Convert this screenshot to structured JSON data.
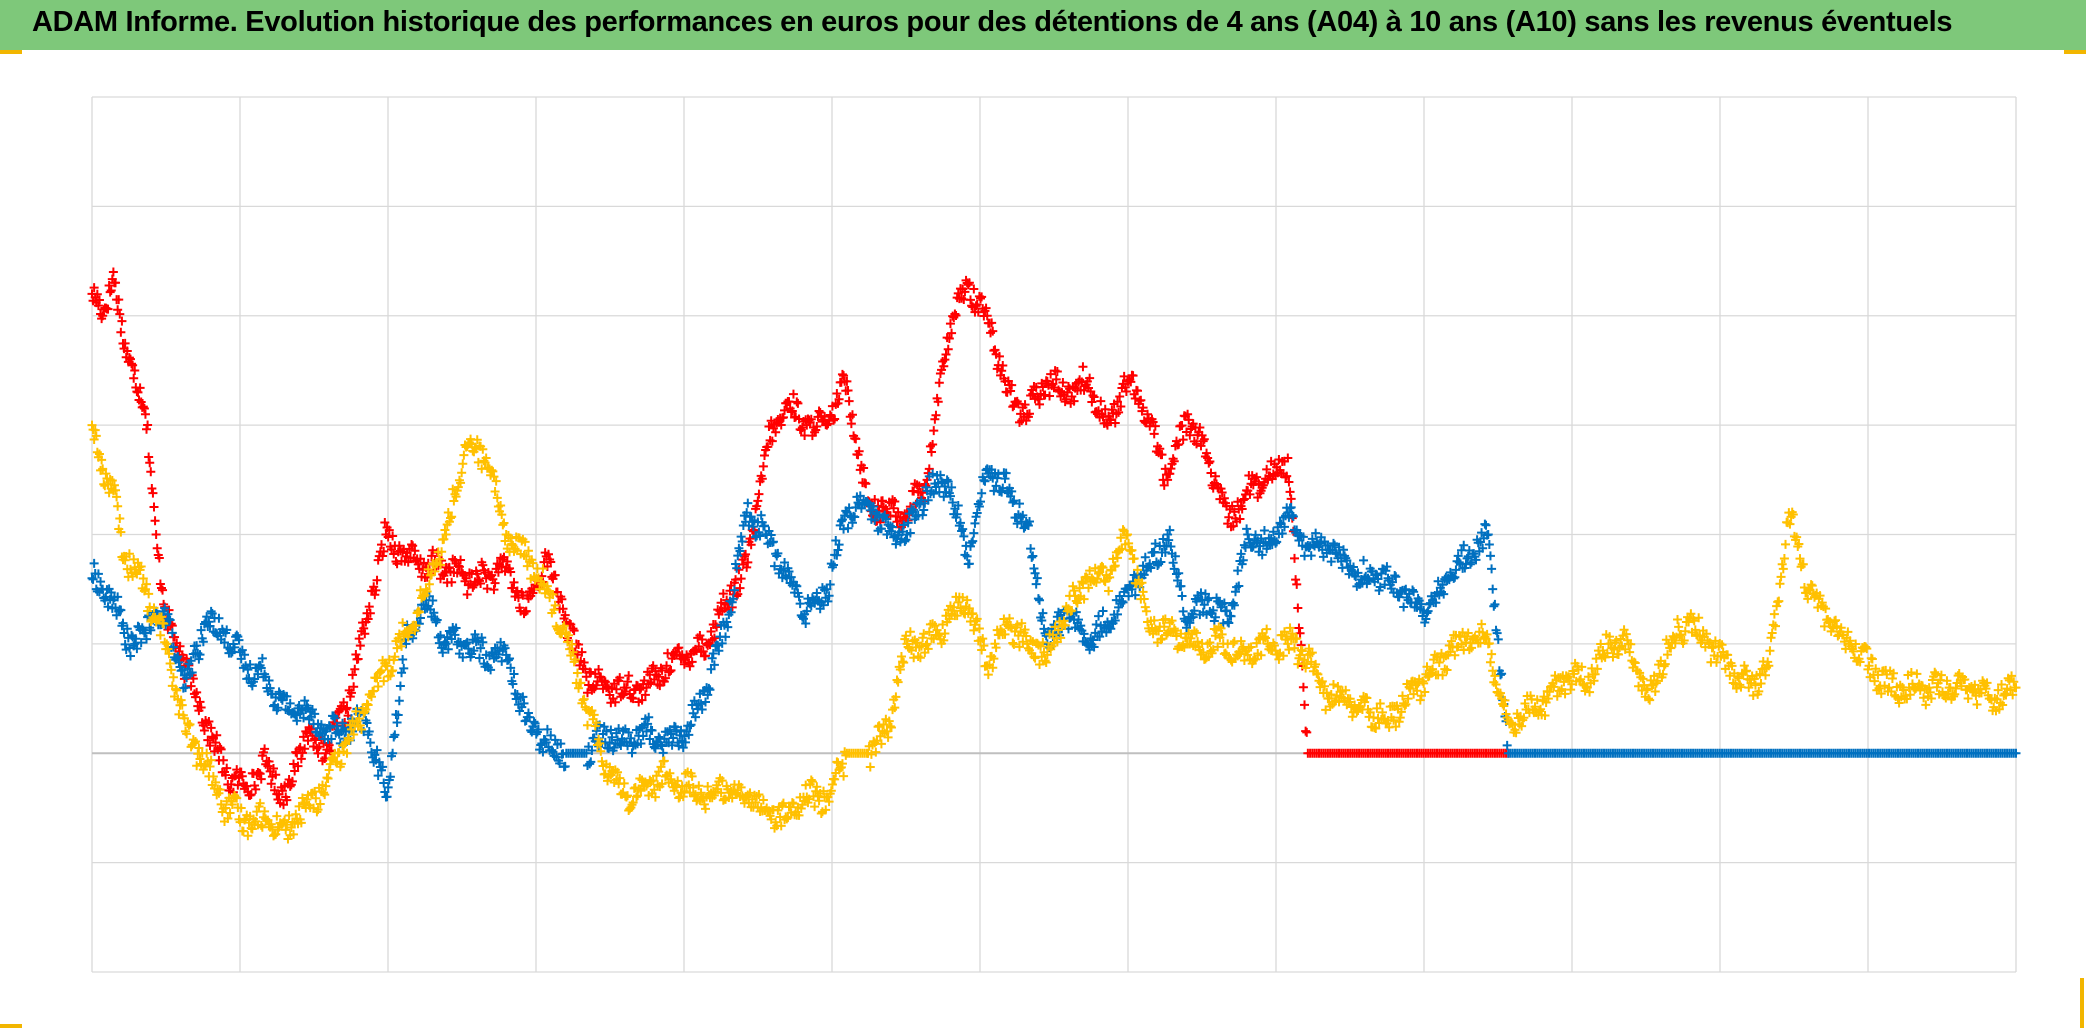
{
  "header": {
    "title": "ADAM Informe. Evolution historique des performances en euros pour des détentions de 4 ans (A04) à 10 ans (A10) sans les revenus éventuels"
  },
  "colors": {
    "title_bar": "#7ec87a",
    "corner_marks": "#f2b600",
    "grid": "#d9d9d9",
    "zero_line": "#bfbfbf"
  },
  "chart_data": {
    "type": "scatter",
    "marker": "plus",
    "grid": true,
    "x_gridlines": 13,
    "y_gridlines": 8,
    "tick_labels_shown": false,
    "legend": "none",
    "xlim": [
      0,
      1440
    ],
    "ylim": [
      -2,
      6
    ],
    "series": [
      {
        "color": "#ff0000",
        "x": [
          0,
          8,
          16,
          24,
          32,
          40,
          48,
          56,
          70,
          85,
          100,
          115,
          130,
          145,
          160,
          175,
          190,
          205,
          220,
          235,
          250,
          265,
          280,
          295,
          310,
          325,
          340,
          355,
          370,
          385,
          400,
          415,
          430,
          445,
          460,
          475,
          490,
          505,
          520,
          535,
          550,
          565,
          580,
          595,
          610,
          625,
          640,
          655,
          670,
          685,
          700,
          715,
          730,
          745,
          760,
          775,
          790,
          805,
          820,
          835,
          850,
          865,
          880,
          895,
          910,
          925,
          940,
          955,
          970,
          985,
          1000,
          1015,
          1030,
          1045,
          1060
        ],
        "y": [
          4.2,
          4.0,
          4.4,
          3.7,
          3.5,
          3.1,
          2.0,
          1.2,
          0.8,
          0.3,
          -0.2,
          -0.3,
          -0.1,
          -0.4,
          0.2,
          0.0,
          0.4,
          1.2,
          2.0,
          1.8,
          1.7,
          1.7,
          1.6,
          1.6,
          1.7,
          1.3,
          1.8,
          1.2,
          0.7,
          0.6,
          0.6,
          0.6,
          0.8,
          0.9,
          1.0,
          1.4,
          1.7,
          2.8,
          3.2,
          3.0,
          3.0,
          3.4,
          2.3,
          2.2,
          2.2,
          2.5,
          3.8,
          4.3,
          4.0,
          3.3,
          3.1,
          3.4,
          3.3,
          3.4,
          3.0,
          3.4,
          3.1,
          2.5,
          3.1,
          2.7,
          2.1,
          2.4,
          2.5,
          2.7,
          0.0,
          0.0,
          0.0,
          0.0,
          0.0,
          0.0,
          0.0,
          0.0,
          0.0,
          0.0,
          0.0
        ]
      },
      {
        "color": "#0070c0",
        "x": [
          0,
          8,
          16,
          24,
          32,
          40,
          48,
          56,
          70,
          85,
          100,
          115,
          130,
          145,
          160,
          175,
          190,
          205,
          220,
          235,
          250,
          265,
          280,
          295,
          310,
          325,
          340,
          355,
          370,
          385,
          400,
          415,
          430,
          445,
          460,
          475,
          490,
          505,
          520,
          535,
          550,
          565,
          580,
          595,
          610,
          625,
          640,
          655,
          670,
          685,
          700,
          715,
          730,
          745,
          760,
          775,
          790,
          805,
          820,
          835,
          850,
          865,
          880,
          895,
          910,
          925,
          940,
          955,
          970,
          985,
          1000,
          1015,
          1030,
          1045,
          1060,
          1075,
          1090,
          1105,
          1120,
          1135,
          1150,
          1165,
          1180,
          1195,
          1210,
          1225,
          1240,
          1255,
          1270,
          1285,
          1300,
          1315,
          1330,
          1345,
          1360,
          1375,
          1390,
          1405,
          1420,
          1440
        ],
        "y": [
          1.6,
          1.5,
          1.4,
          1.1,
          1.0,
          1.1,
          1.3,
          1.2,
          0.6,
          1.2,
          1.1,
          0.8,
          0.7,
          0.4,
          0.4,
          0.2,
          0.2,
          0.3,
          -0.4,
          1.0,
          1.4,
          1.0,
          1.0,
          0.9,
          0.9,
          0.3,
          0.1,
          0.0,
          0.0,
          0.2,
          0.1,
          0.2,
          0.1,
          0.2,
          0.6,
          1.2,
          2.2,
          2.0,
          1.6,
          1.3,
          1.5,
          2.2,
          2.3,
          2.0,
          2.0,
          2.4,
          2.5,
          1.8,
          2.6,
          2.4,
          2.1,
          1.0,
          1.3,
          1.0,
          1.2,
          1.5,
          1.7,
          2.0,
          1.2,
          1.4,
          1.2,
          2.0,
          1.9,
          2.2,
          1.9,
          1.9,
          1.7,
          1.6,
          1.6,
          1.4,
          1.3,
          1.6,
          1.8,
          2.0,
          0.0,
          0.0,
          0.0,
          0.0,
          0.0,
          0.0,
          0.0,
          0.0,
          0.0,
          0.0,
          0.0,
          0.0,
          0.0,
          0.0,
          0.0,
          0.0,
          0.0,
          0.0,
          0.0,
          0.0,
          0.0,
          0.0,
          0.0,
          0.0,
          0.0,
          0.0
        ]
      },
      {
        "color": "#ffc000",
        "x": [
          0,
          8,
          16,
          24,
          32,
          40,
          48,
          56,
          70,
          85,
          100,
          115,
          130,
          145,
          160,
          175,
          190,
          205,
          220,
          235,
          250,
          265,
          280,
          295,
          310,
          325,
          340,
          355,
          370,
          385,
          400,
          415,
          430,
          445,
          460,
          475,
          490,
          505,
          520,
          535,
          550,
          565,
          580,
          595,
          610,
          625,
          640,
          655,
          670,
          685,
          700,
          715,
          730,
          745,
          760,
          775,
          790,
          805,
          820,
          835,
          850,
          865,
          880,
          895,
          910,
          925,
          940,
          955,
          970,
          985,
          1000,
          1015,
          1030,
          1045,
          1060,
          1075,
          1090,
          1105,
          1120,
          1135,
          1150,
          1165,
          1180,
          1195,
          1210,
          1225,
          1240,
          1255,
          1270,
          1285,
          1300,
          1315,
          1330,
          1345,
          1360,
          1375,
          1390,
          1405,
          1420,
          1440
        ],
        "y": [
          3.0,
          2.6,
          2.4,
          1.8,
          1.7,
          1.5,
          1.2,
          1.0,
          0.2,
          -0.1,
          -0.5,
          -0.6,
          -0.6,
          -0.7,
          -0.5,
          -0.3,
          0.1,
          0.4,
          0.8,
          1.1,
          1.5,
          2.0,
          2.8,
          2.7,
          2.0,
          1.8,
          1.5,
          1.1,
          0.4,
          -0.1,
          -0.4,
          -0.3,
          -0.2,
          -0.3,
          -0.4,
          -0.3,
          -0.4,
          -0.5,
          -0.6,
          -0.4,
          -0.4,
          0.0,
          0.0,
          0.2,
          1.0,
          1.0,
          1.2,
          1.4,
          0.8,
          1.2,
          1.0,
          0.9,
          1.3,
          1.6,
          1.6,
          2.0,
          1.2,
          1.1,
          1.0,
          1.0,
          1.0,
          0.9,
          1.0,
          1.0,
          0.9,
          0.5,
          0.5,
          0.4,
          0.3,
          0.5,
          0.7,
          0.9,
          1.1,
          1.0,
          0.3,
          0.4,
          0.5,
          0.7,
          0.7,
          1.0,
          1.0,
          0.5,
          1.0,
          1.2,
          1.0,
          0.8,
          0.6,
          0.8,
          2.2,
          1.5,
          1.2,
          1.0,
          0.8,
          0.6,
          0.6,
          0.6,
          0.6,
          0.6,
          0.5,
          0.6
        ]
      }
    ]
  }
}
